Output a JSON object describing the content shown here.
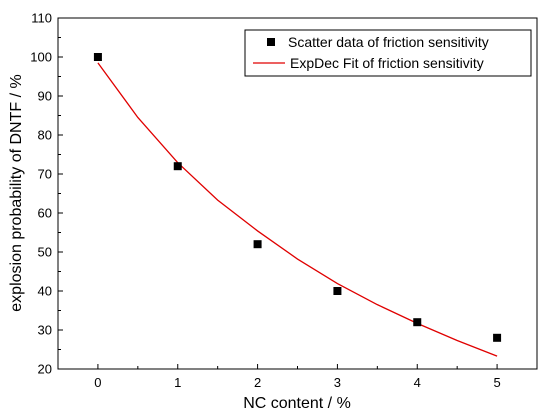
{
  "chart_data": {
    "type": "scatter",
    "xlabel": "NC content / %",
    "ylabel": "explosion probability of DNTF / %",
    "xlim": [
      -0.5,
      5.5
    ],
    "ylim": [
      20,
      110
    ],
    "x_ticks": [
      0,
      1,
      2,
      3,
      4,
      5
    ],
    "y_ticks": [
      20,
      30,
      40,
      50,
      60,
      70,
      80,
      90,
      100,
      110
    ],
    "grid": false,
    "legend_position": "top-right",
    "series": [
      {
        "name": "Scatter data of friction sensitivity",
        "kind": "scatter",
        "marker": "square",
        "color": "#000000",
        "x": [
          0,
          1,
          2,
          3,
          4,
          5
        ],
        "y": [
          100,
          72,
          52,
          40,
          32,
          28
        ]
      },
      {
        "name": "ExpDec Fit of friction sensitivity",
        "kind": "line",
        "color": "#e00000",
        "x": [
          0,
          0.5,
          1,
          1.5,
          2,
          2.5,
          3,
          3.5,
          4,
          4.5,
          5
        ],
        "y": [
          98.5,
          84.5,
          72.9,
          63.3,
          55.4,
          48.2,
          41.9,
          36.5,
          31.7,
          27.3,
          23.3
        ]
      }
    ]
  }
}
